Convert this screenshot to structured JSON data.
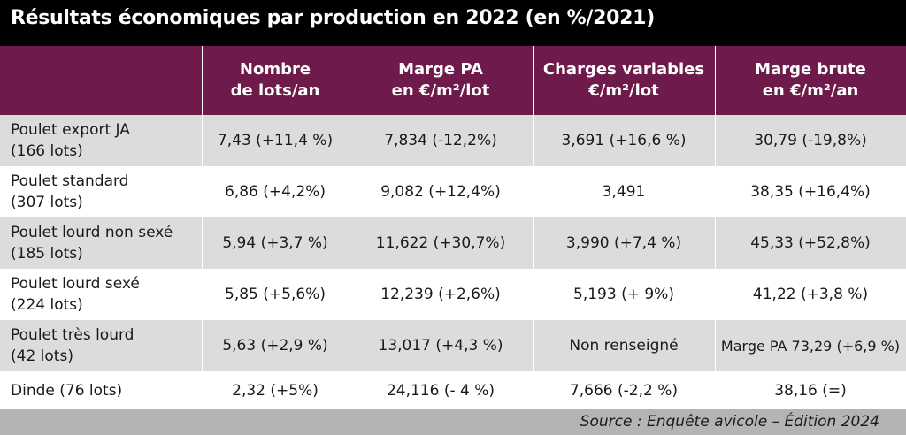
{
  "title": "Résultats économiques par production en 2022 (en %/2021)",
  "headers": [
    {
      "line1": "Nombre",
      "line2": "de lots/an"
    },
    {
      "line1": "Marge PA",
      "line2": "en €/m²/lot"
    },
    {
      "line1": "Charges variables",
      "line2": "€/m²/lot"
    },
    {
      "line1": "Marge brute",
      "line2": "en €/m²/an"
    }
  ],
  "rows": [
    {
      "name": "Poulet export JA",
      "lots": "(166 lots)",
      "c1": "7,43 (+11,4 %)",
      "c2": "7,834 (-12,2%)",
      "c3": "3,691 (+16,6 %)",
      "c4": "30,79 (-19,8%)"
    },
    {
      "name": "Poulet standard",
      "lots": "(307 lots)",
      "c1": "6,86 (+4,2%)",
      "c2": "9,082 (+12,4%)",
      "c3": "3,491",
      "c4": "38,35 (+16,4%)"
    },
    {
      "name": "Poulet lourd non sexé",
      "lots": "(185 lots)",
      "c1": "5,94 (+3,7 %)",
      "c2": "11,622 (+30,7%)",
      "c3": "3,990 (+7,4 %)",
      "c4": "45,33 (+52,8%)"
    },
    {
      "name": "Poulet lourd sexé",
      "lots": "(224 lots)",
      "c1": "5,85 (+5,6%)",
      "c2": "12,239 (+2,6%)",
      "c3": "5,193 (+ 9%)",
      "c4": "41,22 (+3,8 %)"
    },
    {
      "name": "Poulet très lourd",
      "lots": "(42 lots)",
      "c1": "5,63 (+2,9 %)",
      "c2": "13,017 (+4,3 %)",
      "c3": "Non renseigné",
      "c4": "Marge PA 73,29 (+6,9 %)"
    },
    {
      "name": "Dinde (76 lots)",
      "lots": "",
      "c1": "2,32 (+5%)",
      "c2": "24,116 (- 4 %)",
      "c3": "7,666 (-2,2 %)",
      "c4": "38,16 (=)"
    }
  ],
  "source": "Source : Enquête avicole – Édition 2024",
  "colors": {
    "header_bg": "#6e1a4a",
    "title_bg": "#000000",
    "stripe": "#dcdcdc",
    "source_bg": "#b4b4b4"
  }
}
